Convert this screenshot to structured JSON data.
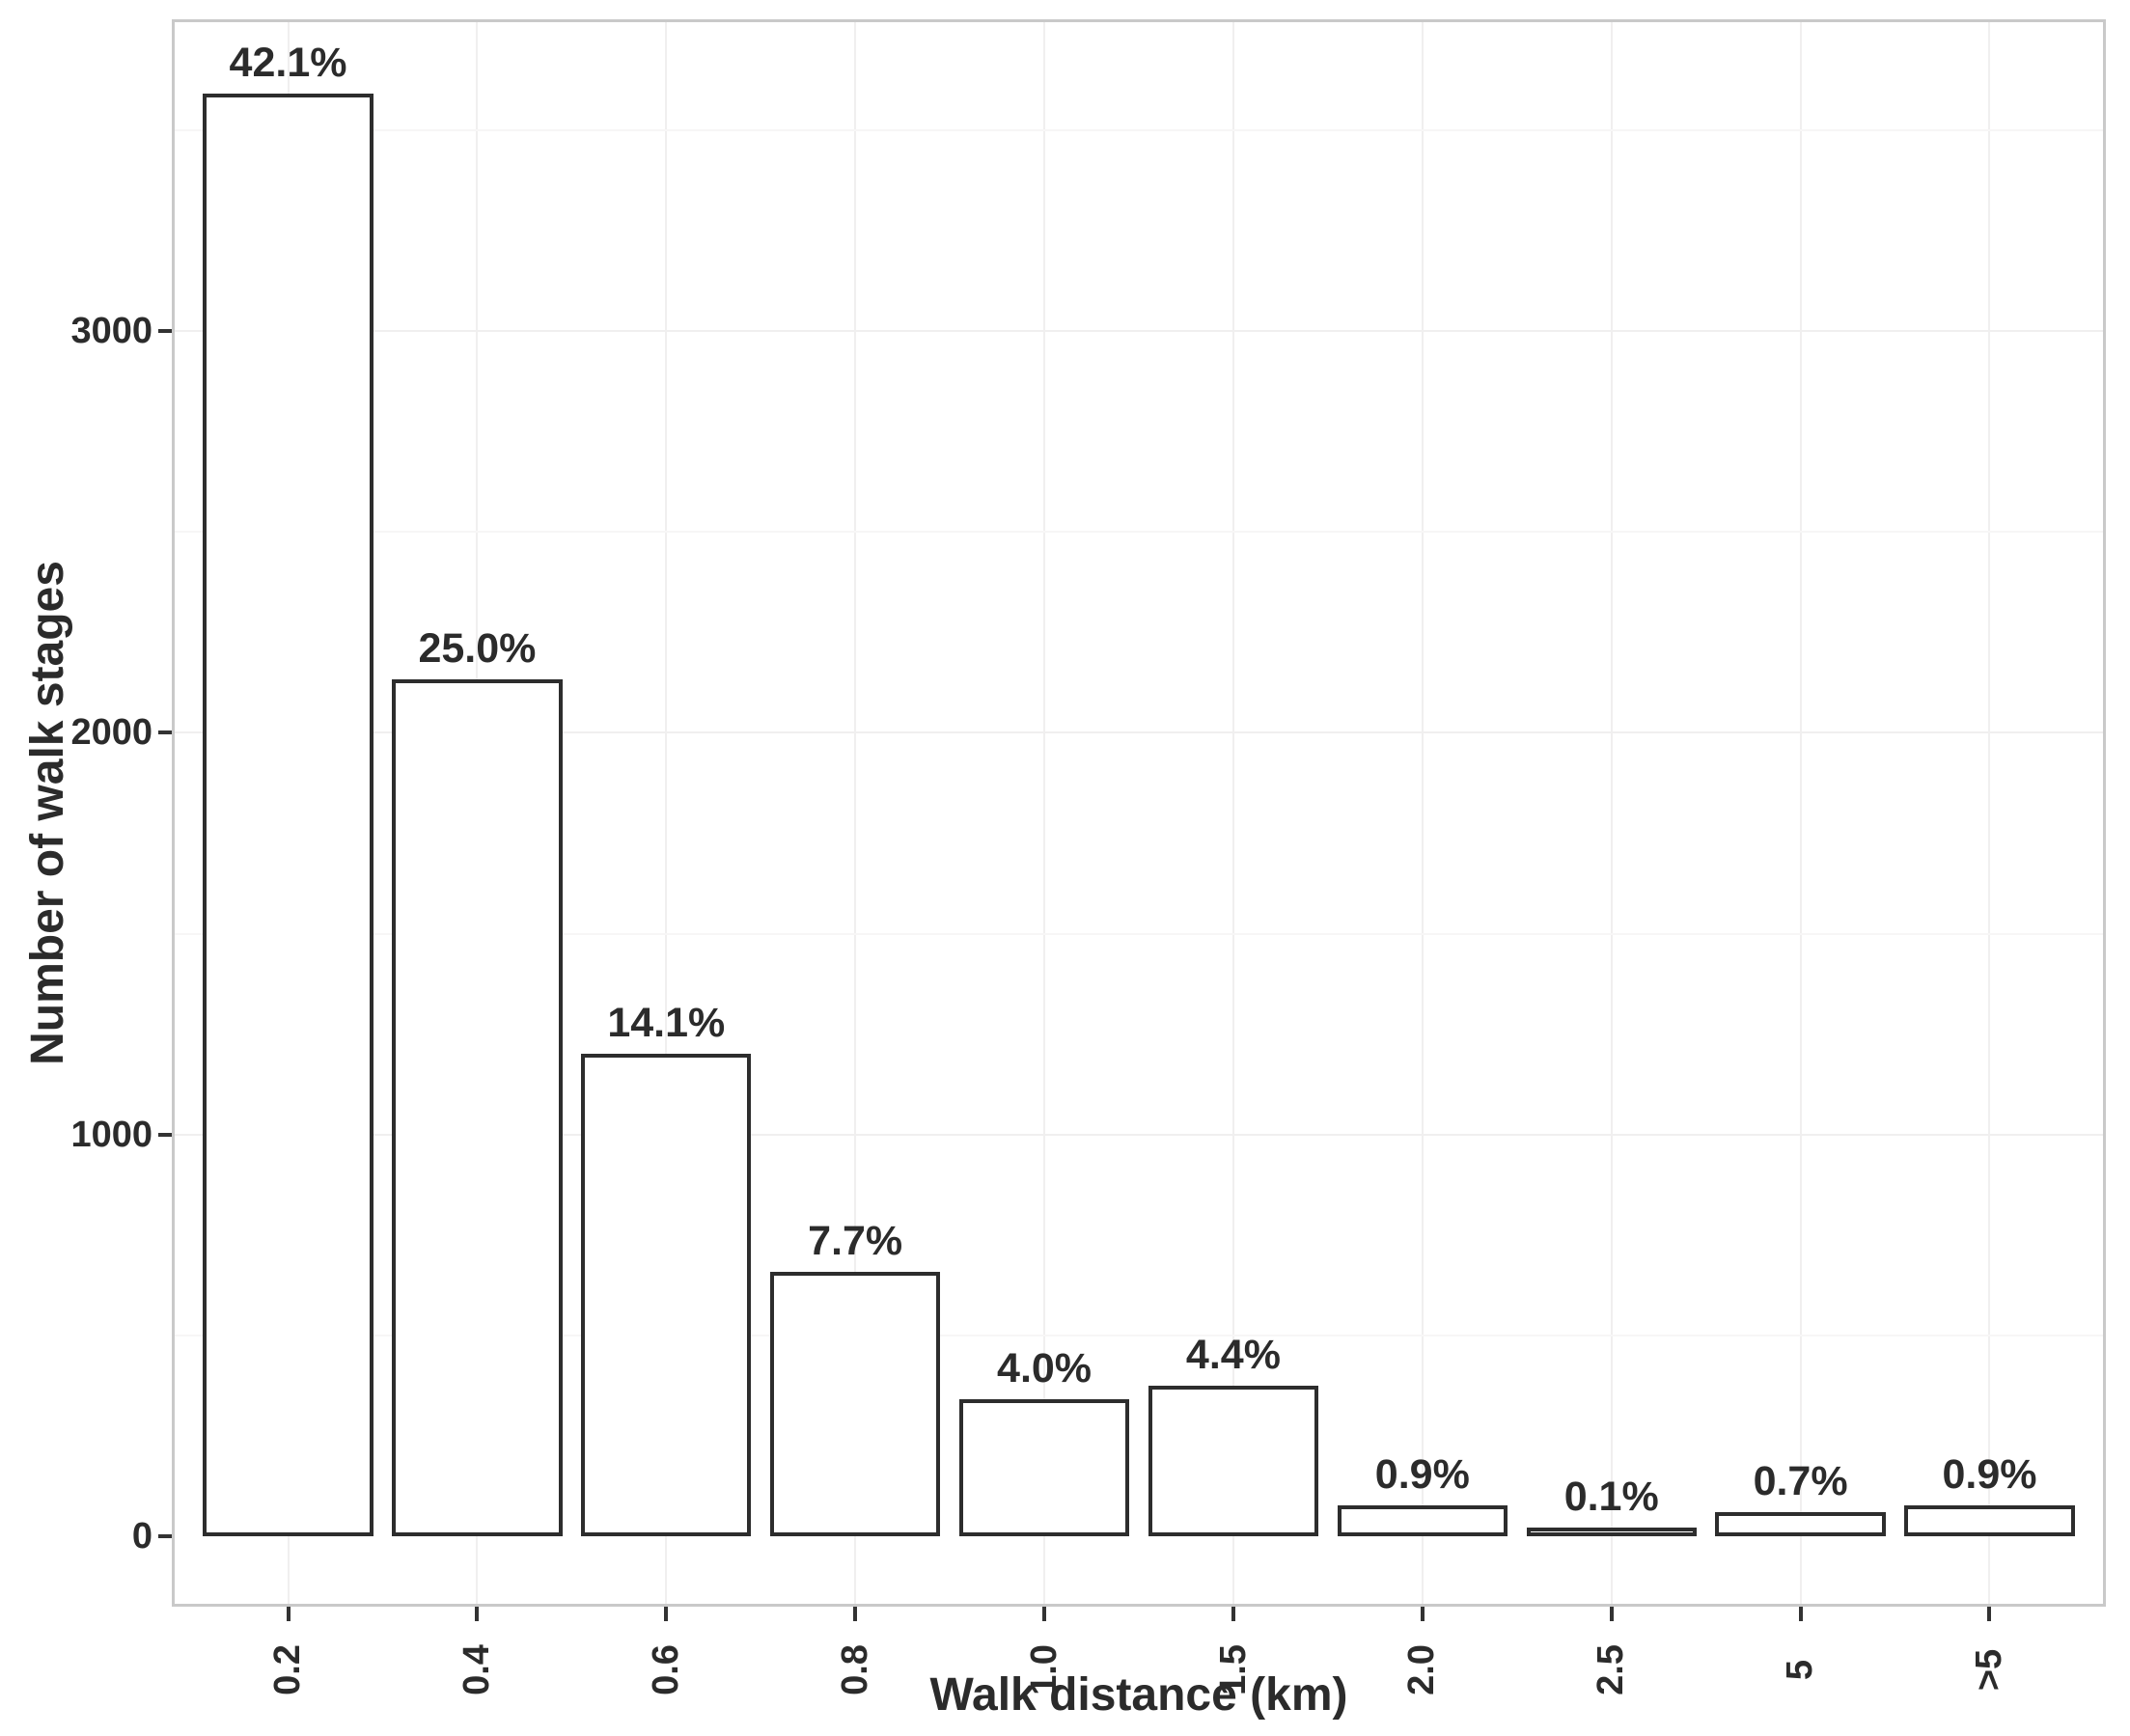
{
  "chart_data": {
    "type": "bar",
    "title": "",
    "xlabel": "Walk distance (km)",
    "ylabel": "Number of walk stages",
    "categories": [
      "0.2",
      "0.4",
      "0.6",
      "0.8",
      "1.0",
      "1.5",
      "2.0",
      "2.5",
      "5",
      ">5"
    ],
    "series": [
      {
        "name": "Number of walk stages",
        "values": [
          3590,
          2132,
          1202,
          657,
          341,
          375,
          77,
          9,
          60,
          77
        ],
        "bar_labels": [
          "42.1%",
          "25.0%",
          "14.1%",
          "7.7%",
          "4.0%",
          "4.4%",
          "0.9%",
          "0.1%",
          "0.7%",
          "0.9%"
        ],
        "percentages": [
          42.1,
          25.0,
          14.1,
          7.7,
          4.0,
          4.4,
          0.9,
          0.1,
          0.7,
          0.9
        ]
      }
    ],
    "ylim": [
      0,
      3769
    ],
    "yticks": [
      0,
      1000,
      2000,
      3000
    ],
    "yticks_minor": [
      500,
      1500,
      2500,
      3500
    ],
    "grid": "on",
    "legend_position": "none",
    "colors": {
      "bar_fill": "#ffffff",
      "bar_stroke": "#2d2d2d",
      "panel_border": "#c9c9c9",
      "grid_major": "#f0efef",
      "grid_minor": "#f7f6f6",
      "tick_mark": "#333333",
      "text": "#2b2b2b",
      "background": "#ffffff"
    }
  }
}
